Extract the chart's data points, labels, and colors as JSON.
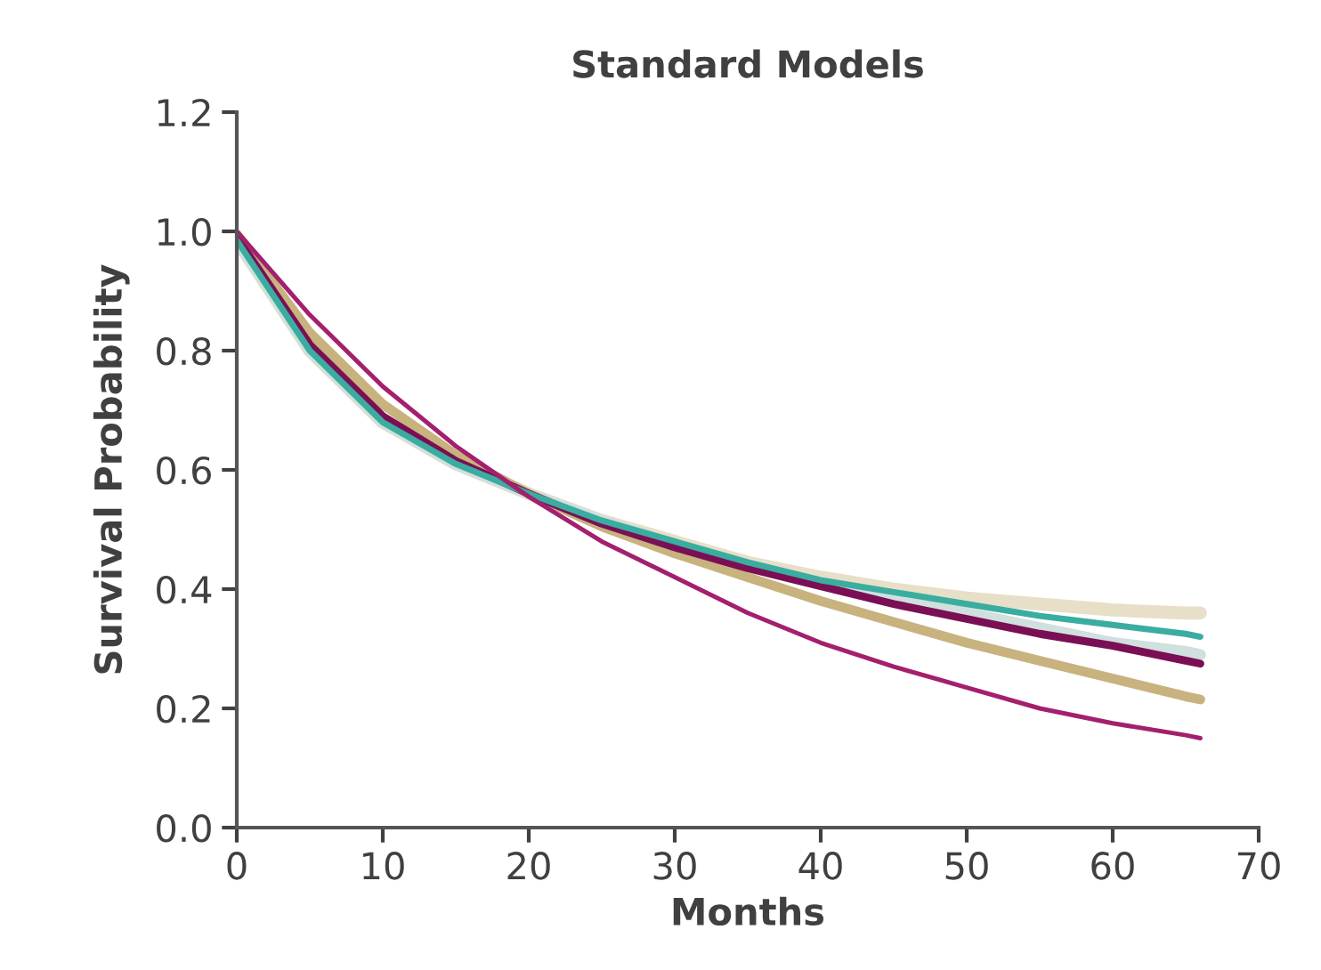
{
  "chart_data": {
    "type": "line",
    "title": "Standard Models",
    "xlabel": "Months",
    "ylabel": "Survival Probability",
    "x": [
      0,
      5,
      10,
      15,
      20,
      25,
      30,
      35,
      40,
      45,
      50,
      55,
      60,
      65,
      66
    ],
    "series": [
      {
        "color": "#e8dfc8",
        "values": [
          0.985,
          0.8,
          0.68,
          0.61,
          0.56,
          0.515,
          0.48,
          0.445,
          0.42,
          0.4,
          0.385,
          0.375,
          0.365,
          0.36,
          0.36
        ]
      },
      {
        "color": "#cfe0de",
        "values": [
          0.985,
          0.8,
          0.68,
          0.61,
          0.56,
          0.515,
          0.475,
          0.44,
          0.41,
          0.385,
          0.36,
          0.335,
          0.31,
          0.295,
          0.29
        ]
      },
      {
        "color": "#c8b27e",
        "values": [
          0.995,
          0.83,
          0.71,
          0.625,
          0.56,
          0.505,
          0.46,
          0.42,
          0.38,
          0.345,
          0.31,
          0.28,
          0.25,
          0.22,
          0.215
        ]
      },
      {
        "color": "#7a0f55",
        "values": [
          0.99,
          0.81,
          0.69,
          0.615,
          0.56,
          0.51,
          0.47,
          0.435,
          0.405,
          0.375,
          0.35,
          0.325,
          0.305,
          0.28,
          0.275
        ]
      },
      {
        "color": "#3aada0",
        "values": [
          0.985,
          0.8,
          0.68,
          0.61,
          0.56,
          0.515,
          0.48,
          0.445,
          0.415,
          0.395,
          0.375,
          0.355,
          0.34,
          0.325,
          0.32
        ]
      },
      {
        "color": "#a3206e",
        "values": [
          1.0,
          0.86,
          0.74,
          0.64,
          0.555,
          0.48,
          0.42,
          0.36,
          0.31,
          0.27,
          0.235,
          0.2,
          0.175,
          0.155,
          0.15
        ]
      }
    ],
    "xlim": [
      0,
      70
    ],
    "xticks": [
      0,
      10,
      20,
      30,
      40,
      50,
      60,
      70
    ],
    "ylim": [
      0,
      1.2
    ],
    "yticks": [
      {
        "value": 0,
        "label": "0.0"
      },
      {
        "value": 0.2,
        "label": "0.2"
      },
      {
        "value": 0.4,
        "label": "0.4"
      },
      {
        "value": 0.6,
        "label": "0.6"
      },
      {
        "value": 0.8,
        "label": "0.8"
      },
      {
        "value": 1.0,
        "label": "1.0"
      },
      {
        "value": 1.2,
        "label": "1.2"
      }
    ],
    "grid": false
  }
}
